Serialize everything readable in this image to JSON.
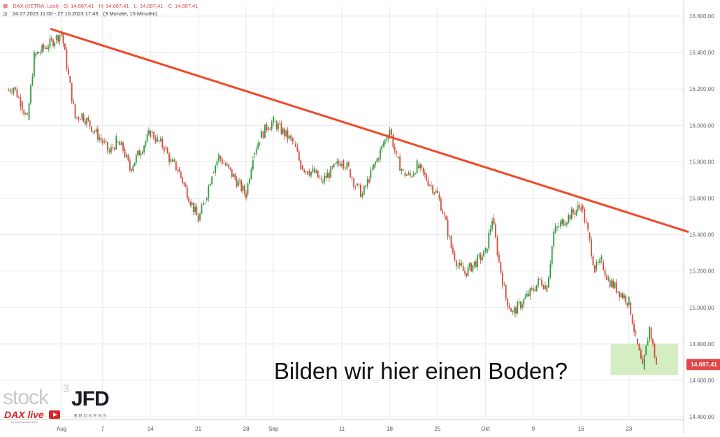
{
  "header": {
    "instrument": "DAX (XETRA, Last)",
    "open": "O: 14.687,41",
    "high": "H: 14.687,41",
    "low": "L: 14.687,41",
    "close": "C: 14.687,41",
    "range": "24.07.2023 11:00 - 27.10.2023 17:45",
    "period": "(3 Monate, 15 Minuten)"
  },
  "annotation": "Bilden wir hier einen Boden?",
  "current_price_label": "14.687,41",
  "logos": {
    "stock3": "stock",
    "stock3_sup": "3",
    "daxlive": "DAX live",
    "daxlive_sub": "by Andreas Bernstein",
    "jfd": "JFD",
    "jfd_sub": "BROKERS"
  },
  "colors": {
    "trendline": "#f04a2a",
    "support_zone": "#cdeab8",
    "candle_up": "#2f9a3f",
    "candle_down": "#d24a3a",
    "price_label_bg": "#e34649",
    "grid": "#e9e9e9"
  },
  "chart_data": {
    "type": "candlestick",
    "y_axis": {
      "ticks": [
        14400,
        14600,
        14800,
        15000,
        15200,
        15400,
        15600,
        15800,
        16000,
        16200,
        16400,
        16600
      ],
      "tick_labels": [
        "14.400,00",
        "14.600,00",
        "14.800,00",
        "15.000,00",
        "15.200,00",
        "15.400,00",
        "15.600,00",
        "15.800,00",
        "16.000,00",
        "16.200,00",
        "16.400,00",
        "16.600,00"
      ],
      "range": [
        14385,
        16650
      ]
    },
    "x_axis": {
      "range": [
        "2023-07-24",
        "2023-10-27"
      ],
      "ticks": [
        {
          "label": "Aug",
          "date": "2023-08-01"
        },
        {
          "label": "7",
          "date": "2023-08-07"
        },
        {
          "label": "14",
          "date": "2023-08-14"
        },
        {
          "label": "21",
          "date": "2023-08-21"
        },
        {
          "label": "28",
          "date": "2023-08-28"
        },
        {
          "label": "Sep",
          "date": "2023-09-01"
        },
        {
          "label": "11",
          "date": "2023-09-11"
        },
        {
          "label": "18",
          "date": "2023-09-18"
        },
        {
          "label": "25",
          "date": "2023-09-25"
        },
        {
          "label": "Okt",
          "date": "2023-10-02"
        },
        {
          "label": "9",
          "date": "2023-10-09"
        },
        {
          "label": "16",
          "date": "2023-10-16"
        },
        {
          "label": "23",
          "date": "2023-10-23"
        }
      ]
    },
    "price_path": [
      [
        "2023-07-24",
        16190
      ],
      [
        "2023-07-25",
        16210
      ],
      [
        "2023-07-26",
        16130
      ],
      [
        "2023-07-27",
        16030
      ],
      [
        "2023-07-28",
        16380
      ],
      [
        "2023-07-31",
        16470
      ],
      [
        "2023-08-01",
        16510
      ],
      [
        "2023-08-02",
        16270
      ],
      [
        "2023-08-03",
        16040
      ],
      [
        "2023-08-04",
        16060
      ],
      [
        "2023-08-07",
        15910
      ],
      [
        "2023-08-08",
        15850
      ],
      [
        "2023-08-09",
        15910
      ],
      [
        "2023-08-10",
        15870
      ],
      [
        "2023-08-11",
        15760
      ],
      [
        "2023-08-14",
        15960
      ],
      [
        "2023-08-15",
        15920
      ],
      [
        "2023-08-16",
        15880
      ],
      [
        "2023-08-17",
        15800
      ],
      [
        "2023-08-18",
        15760
      ],
      [
        "2023-08-21",
        15480
      ],
      [
        "2023-08-22",
        15590
      ],
      [
        "2023-08-23",
        15740
      ],
      [
        "2023-08-24",
        15830
      ],
      [
        "2023-08-25",
        15780
      ],
      [
        "2023-08-28",
        15620
      ],
      [
        "2023-08-29",
        15840
      ],
      [
        "2023-08-30",
        15930
      ],
      [
        "2023-08-31",
        15990
      ],
      [
        "2023-09-01",
        16020
      ],
      [
        "2023-09-04",
        15900
      ],
      [
        "2023-09-05",
        15780
      ],
      [
        "2023-09-06",
        15750
      ],
      [
        "2023-09-07",
        15740
      ],
      [
        "2023-09-08",
        15690
      ],
      [
        "2023-09-11",
        15810
      ],
      [
        "2023-09-12",
        15760
      ],
      [
        "2023-09-13",
        15670
      ],
      [
        "2023-09-14",
        15620
      ],
      [
        "2023-09-15",
        15710
      ],
      [
        "2023-09-18",
        15980
      ],
      [
        "2023-09-19",
        15820
      ],
      [
        "2023-09-20",
        15740
      ],
      [
        "2023-09-21",
        15720
      ],
      [
        "2023-09-22",
        15780
      ],
      [
        "2023-09-25",
        15620
      ],
      [
        "2023-09-26",
        15500
      ],
      [
        "2023-09-27",
        15330
      ],
      [
        "2023-09-28",
        15230
      ],
      [
        "2023-09-29",
        15190
      ],
      [
        "2023-10-02",
        15300
      ],
      [
        "2023-10-03",
        15490
      ],
      [
        "2023-10-04",
        15250
      ],
      [
        "2023-10-05",
        15050
      ],
      [
        "2023-10-06",
        14970
      ],
      [
        "2023-10-09",
        15100
      ],
      [
        "2023-10-10",
        15150
      ],
      [
        "2023-10-11",
        15110
      ],
      [
        "2023-10-12",
        15410
      ],
      [
        "2023-10-13",
        15460
      ],
      [
        "2023-10-16",
        15560
      ],
      [
        "2023-10-17",
        15410
      ],
      [
        "2023-10-18",
        15210
      ],
      [
        "2023-10-19",
        15250
      ],
      [
        "2023-10-20",
        15150
      ],
      [
        "2023-10-23",
        15030
      ],
      [
        "2023-10-24",
        14830
      ],
      [
        "2023-10-25",
        14660
      ],
      [
        "2023-10-26",
        14890
      ],
      [
        "2023-10-27",
        14687
      ]
    ],
    "trendline": {
      "from": [
        "2023-07-31",
        16540
      ],
      "to": [
        "2023-10-31",
        15420
      ]
    },
    "support_zone": {
      "x_from": "2023-10-20",
      "x_to": "2023-10-31",
      "y_low": 14630,
      "y_high": 14800
    },
    "last_price": 14687.41
  }
}
